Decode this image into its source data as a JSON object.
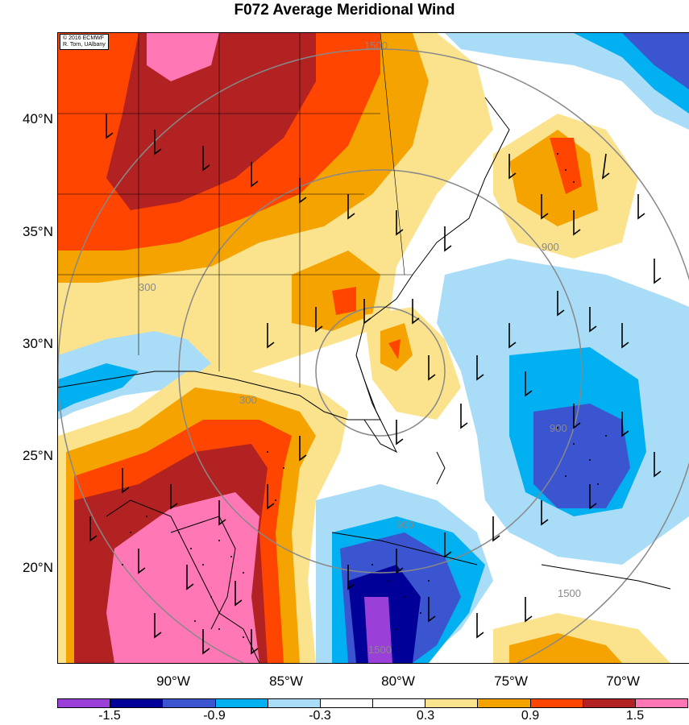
{
  "title": "F072 Average Meridional Wind",
  "credit": {
    "line1": "© 2016 ECMWF",
    "line2": "R. Torn, UAlbany"
  },
  "lat_labels": [
    "40°N",
    "35°N",
    "30°N",
    "25°N",
    "20°N"
  ],
  "lon_labels": [
    "90°W",
    "85°W",
    "80°W",
    "75°W",
    "70°W"
  ],
  "range_ring_labels": [
    "1500",
    "300",
    "900",
    "900",
    "900",
    "1500",
    "1500",
    "300"
  ],
  "colorbar": {
    "colors": [
      "#9a3fd8",
      "#000099",
      "#3b55d0",
      "#00b0f0",
      "#a8dcf7",
      "#ffffff",
      "#ffffff",
      "#fbe38e",
      "#f5a300",
      "#ff4500",
      "#b22222",
      "#ff77b4"
    ],
    "labels": [
      "-1.5",
      "-0.9",
      "-0.3",
      "0.3",
      "0.9",
      "1.5"
    ]
  }
}
